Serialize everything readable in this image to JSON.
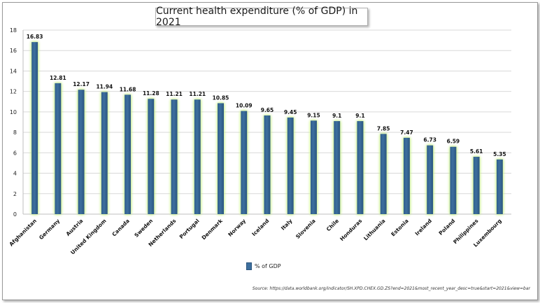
{
  "chart_data": {
    "type": "bar",
    "title": "Current health expenditure (% of GDP) in 2021",
    "categories": [
      "Afghanistan",
      "Germany",
      "Austria",
      "United Kingdom",
      "Canada",
      "Sweden",
      "Netherlands",
      "Portugal",
      "Denmark",
      "Norway",
      "Iceland",
      "Italy",
      "Slovenia",
      "Chile",
      "Honduras",
      "Lithuania",
      "Estonia",
      "Ireland",
      "Poland",
      "Philippines",
      "Luxembourg"
    ],
    "values": [
      16.83,
      12.81,
      12.17,
      11.94,
      11.68,
      11.28,
      11.21,
      11.21,
      10.85,
      10.09,
      9.65,
      9.45,
      9.15,
      9.1,
      9.1,
      7.85,
      7.47,
      6.73,
      6.59,
      5.61,
      5.35
    ],
    "value_labels": [
      "16.83",
      "12.81",
      "12.17",
      "11.94",
      "11.68",
      "11.28",
      "11.21",
      "11.21",
      "10.85",
      "10.09",
      "9.65",
      "9.45",
      "9.15",
      "9.1",
      "9.1",
      "7.85",
      "7.47",
      "6.73",
      "6.59",
      "5.61",
      "5.35"
    ],
    "yticks": [
      0,
      2,
      4,
      6,
      8,
      10,
      12,
      14,
      16,
      18
    ],
    "ylim": [
      0,
      18
    ],
    "grid": true,
    "legend": {
      "position": "bottom",
      "label": "% of GDP"
    },
    "bar_color": "#3d6f9e",
    "glow_color": "#c8f08a",
    "source": "Source: https://data.worldbank.org/indicator/SH.XPD.CHEX.GD.ZS?end=2021&most_recent_year_desc=true&start=2021&view=bar"
  }
}
